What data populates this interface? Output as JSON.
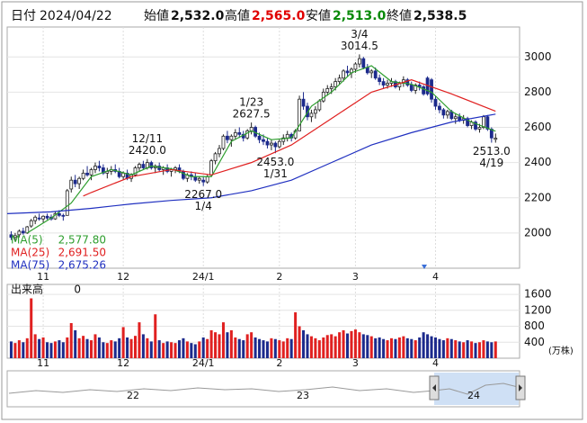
{
  "header": {
    "date_label": "日付",
    "date": "2024/04/22",
    "fields": [
      {
        "label": "始値",
        "value": 2532,
        "text": "2,532.0"
      },
      {
        "label": "高値",
        "value": 2565,
        "text": "2,565.0"
      },
      {
        "label": "安値",
        "value": 2513,
        "text": "2,513.0"
      },
      {
        "label": "終値",
        "value": 2538.5,
        "text": "2,538.5"
      }
    ]
  },
  "chart_data": {
    "type": "candlestick",
    "up_color": "#ffffff",
    "up_stroke": "#222222",
    "down_color": "#1c2a8c",
    "xlim": [
      -1,
      127
    ],
    "ylim": [
      1800,
      3170
    ],
    "yticks": [
      2000,
      2200,
      2400,
      2600,
      2800,
      3000
    ],
    "grid": true,
    "xticks": [
      {
        "value": 8,
        "label": "11"
      },
      {
        "value": 28,
        "label": "12"
      },
      {
        "value": 48,
        "label": "24/1"
      },
      {
        "value": 67,
        "label": "2"
      },
      {
        "value": 86,
        "label": "3"
      },
      {
        "value": 106,
        "label": "4"
      }
    ],
    "candles": [
      [
        1990,
        2010,
        1960,
        1975
      ],
      [
        1975,
        2000,
        1950,
        1985
      ],
      [
        1990,
        2020,
        1975,
        2010
      ],
      [
        2010,
        2030,
        1990,
        2000
      ],
      [
        2000,
        2040,
        1995,
        2035
      ],
      [
        2040,
        2080,
        2030,
        2070
      ],
      [
        2070,
        2100,
        2050,
        2090
      ],
      [
        2085,
        2110,
        2070,
        2080
      ],
      [
        2080,
        2100,
        2060,
        2095
      ],
      [
        2095,
        2110,
        2075,
        2085
      ],
      [
        2090,
        2105,
        2070,
        2080
      ],
      [
        2080,
        2120,
        2075,
        2110
      ],
      [
        2110,
        2130,
        2090,
        2100
      ],
      [
        2100,
        2110,
        2070,
        2095
      ],
      [
        2100,
        2250,
        2100,
        2240
      ],
      [
        2250,
        2320,
        2230,
        2300
      ],
      [
        2300,
        2330,
        2260,
        2280
      ],
      [
        2280,
        2320,
        2250,
        2310
      ],
      [
        2310,
        2360,
        2300,
        2340
      ],
      [
        2340,
        2380,
        2320,
        2330
      ],
      [
        2330,
        2370,
        2300,
        2360
      ],
      [
        2360,
        2400,
        2340,
        2380
      ],
      [
        2380,
        2410,
        2350,
        2370
      ],
      [
        2370,
        2390,
        2330,
        2340
      ],
      [
        2340,
        2370,
        2310,
        2350
      ],
      [
        2350,
        2380,
        2330,
        2360
      ],
      [
        2360,
        2390,
        2340,
        2350
      ],
      [
        2350,
        2370,
        2310,
        2320
      ],
      [
        2320,
        2350,
        2300,
        2340
      ],
      [
        2340,
        2360,
        2300,
        2310
      ],
      [
        2310,
        2340,
        2290,
        2330
      ],
      [
        2330,
        2380,
        2320,
        2370
      ],
      [
        2370,
        2400,
        2350,
        2390
      ],
      [
        2390,
        2410,
        2360,
        2370
      ],
      [
        2370,
        2420,
        2360,
        2400
      ],
      [
        2400,
        2410,
        2360,
        2370
      ],
      [
        2370,
        2390,
        2340,
        2380
      ],
      [
        2380,
        2400,
        2350,
        2360
      ],
      [
        2360,
        2380,
        2330,
        2370
      ],
      [
        2370,
        2390,
        2340,
        2350
      ],
      [
        2350,
        2370,
        2320,
        2360
      ],
      [
        2360,
        2380,
        2340,
        2370
      ],
      [
        2370,
        2390,
        2340,
        2350
      ],
      [
        2350,
        2360,
        2300,
        2310
      ],
      [
        2310,
        2340,
        2290,
        2330
      ],
      [
        2330,
        2350,
        2300,
        2320
      ],
      [
        2320,
        2340,
        2290,
        2300
      ],
      [
        2300,
        2320,
        2280,
        2310
      ],
      [
        2300,
        2320,
        2267,
        2290
      ],
      [
        2290,
        2330,
        2280,
        2320
      ],
      [
        2330,
        2420,
        2320,
        2410
      ],
      [
        2410,
        2460,
        2390,
        2450
      ],
      [
        2450,
        2500,
        2430,
        2480
      ],
      [
        2480,
        2560,
        2470,
        2550
      ],
      [
        2550,
        2580,
        2510,
        2530
      ],
      [
        2530,
        2560,
        2490,
        2550
      ],
      [
        2550,
        2590,
        2530,
        2570
      ],
      [
        2570,
        2600,
        2540,
        2560
      ],
      [
        2560,
        2580,
        2520,
        2540
      ],
      [
        2540,
        2590,
        2530,
        2580
      ],
      [
        2580,
        2627.5,
        2560,
        2600
      ],
      [
        2600,
        2610,
        2540,
        2550
      ],
      [
        2550,
        2570,
        2510,
        2530
      ],
      [
        2530,
        2560,
        2500,
        2520
      ],
      [
        2520,
        2540,
        2480,
        2500
      ],
      [
        2500,
        2530,
        2470,
        2510
      ],
      [
        2510,
        2520,
        2453,
        2490
      ],
      [
        2490,
        2530,
        2480,
        2520
      ],
      [
        2520,
        2560,
        2500,
        2540
      ],
      [
        2540,
        2580,
        2520,
        2560
      ],
      [
        2560,
        2570,
        2520,
        2540
      ],
      [
        2540,
        2590,
        2530,
        2580
      ],
      [
        2580,
        2780,
        2580,
        2760
      ],
      [
        2760,
        2800,
        2700,
        2720
      ],
      [
        2720,
        2740,
        2640,
        2660
      ],
      [
        2660,
        2700,
        2630,
        2680
      ],
      [
        2680,
        2720,
        2650,
        2700
      ],
      [
        2700,
        2760,
        2690,
        2750
      ],
      [
        2750,
        2820,
        2740,
        2800
      ],
      [
        2800,
        2840,
        2780,
        2820
      ],
      [
        2820,
        2850,
        2790,
        2830
      ],
      [
        2830,
        2880,
        2810,
        2860
      ],
      [
        2860,
        2900,
        2840,
        2880
      ],
      [
        2880,
        2930,
        2860,
        2920
      ],
      [
        2920,
        2950,
        2890,
        2910
      ],
      [
        2910,
        2940,
        2880,
        2930
      ],
      [
        2930,
        2970,
        2910,
        2960
      ],
      [
        2960,
        3014.5,
        2940,
        2990
      ],
      [
        2990,
        3000,
        2930,
        2940
      ],
      [
        2940,
        2960,
        2900,
        2910
      ],
      [
        2910,
        2930,
        2880,
        2920
      ],
      [
        2920,
        2940,
        2870,
        2880
      ],
      [
        2880,
        2900,
        2840,
        2860
      ],
      [
        2860,
        2880,
        2820,
        2840
      ],
      [
        2840,
        2870,
        2820,
        2850
      ],
      [
        2850,
        2880,
        2830,
        2860
      ],
      [
        2860,
        2870,
        2820,
        2830
      ],
      [
        2830,
        2860,
        2810,
        2850
      ],
      [
        2850,
        2890,
        2830,
        2870
      ],
      [
        2870,
        2880,
        2830,
        2840
      ],
      [
        2840,
        2860,
        2800,
        2810
      ],
      [
        2810,
        2850,
        2790,
        2840
      ],
      [
        2840,
        2860,
        2810,
        2830
      ],
      [
        2830,
        2840,
        2780,
        2790
      ],
      [
        2880,
        2890,
        2780,
        2790
      ],
      [
        2870,
        2880,
        2740,
        2760
      ],
      [
        2760,
        2780,
        2700,
        2720
      ],
      [
        2720,
        2740,
        2680,
        2700
      ],
      [
        2700,
        2710,
        2650,
        2670
      ],
      [
        2670,
        2700,
        2650,
        2690
      ],
      [
        2690,
        2700,
        2640,
        2650
      ],
      [
        2650,
        2680,
        2620,
        2660
      ],
      [
        2660,
        2680,
        2630,
        2640
      ],
      [
        2640,
        2670,
        2620,
        2650
      ],
      [
        2650,
        2660,
        2600,
        2610
      ],
      [
        2610,
        2640,
        2590,
        2630
      ],
      [
        2630,
        2640,
        2580,
        2590
      ],
      [
        2590,
        2620,
        2570,
        2600
      ],
      [
        2600,
        2670,
        2590,
        2660
      ],
      [
        2660,
        2670,
        2580,
        2590
      ],
      [
        2590,
        2600,
        2513,
        2540
      ],
      [
        2532,
        2565,
        2513,
        2538.5
      ]
    ],
    "series": [
      {
        "name": "MA(5)",
        "color": "#2e9e2e",
        "last": {
          "value": 2577.8,
          "label": "2,577.80"
        },
        "x": [
          4,
          10,
          15,
          20,
          25,
          30,
          35,
          40,
          45,
          50,
          55,
          60,
          65,
          70,
          75,
          80,
          85,
          90,
          95,
          100,
          105,
          110,
          115,
          121
        ],
        "values": [
          2000,
          2085,
          2170,
          2320,
          2360,
          2330,
          2380,
          2365,
          2320,
          2320,
          2520,
          2580,
          2530,
          2540,
          2720,
          2800,
          2910,
          2950,
          2860,
          2845,
          2800,
          2690,
          2630,
          2577.8
        ]
      },
      {
        "name": "MA(25)",
        "color": "#e02020",
        "last": {
          "value": 2691.5,
          "label": "2,691.50"
        },
        "x": [
          18,
          20,
          30,
          40,
          50,
          60,
          70,
          80,
          90,
          100,
          110,
          121
        ],
        "values": [
          2210,
          2230,
          2320,
          2360,
          2330,
          2400,
          2500,
          2650,
          2800,
          2870,
          2790,
          2691.5
        ]
      },
      {
        "name": "MA(75)",
        "color": "#2030c0",
        "last": {
          "value": 2675.26,
          "label": "2,675.26"
        },
        "x": [
          -1,
          10,
          20,
          30,
          40,
          50,
          60,
          70,
          80,
          90,
          100,
          110,
          121
        ],
        "values": [
          2110,
          2120,
          2140,
          2165,
          2185,
          2200,
          2240,
          2300,
          2400,
          2500,
          2570,
          2630,
          2675.26
        ]
      }
    ],
    "annotations": [
      {
        "date": "12/11",
        "x": 34,
        "value": 2420,
        "label": "2420.0",
        "kind": "high"
      },
      {
        "date": "1/4",
        "x": 48,
        "value": 2267,
        "label": "2267.0",
        "kind": "low"
      },
      {
        "date": "1/23",
        "x": 60,
        "value": 2627.5,
        "label": "2627.5",
        "kind": "high"
      },
      {
        "date": "1/31",
        "x": 66,
        "value": 2453,
        "label": "2453.0",
        "kind": "low"
      },
      {
        "date": "3/4",
        "x": 87,
        "value": 3014.5,
        "label": "3014.5",
        "kind": "high"
      },
      {
        "date": "4/19",
        "x": 120,
        "value": 2513,
        "label": "2513.0",
        "kind": "low"
      }
    ],
    "volume": {
      "label": "出来高",
      "readout": 0,
      "unit": "(万株)",
      "ylim": [
        0,
        1850
      ],
      "yticks": [
        400,
        800,
        1200,
        1600
      ],
      "values": [
        420,
        380,
        450,
        400,
        500,
        1500,
        600,
        480,
        520,
        400,
        380,
        420,
        450,
        400,
        520,
        880,
        700,
        500,
        560,
        480,
        450,
        600,
        520,
        400,
        380,
        450,
        420,
        500,
        780,
        520,
        480,
        560,
        900,
        600,
        500,
        420,
        1100,
        450,
        380,
        420,
        400,
        380,
        450,
        500,
        420,
        380,
        350,
        420,
        520,
        480,
        700,
        650,
        600,
        900,
        650,
        700,
        520,
        480,
        450,
        600,
        650,
        520,
        480,
        450,
        420,
        500,
        480,
        450,
        420,
        500,
        480,
        1150,
        800,
        700,
        600,
        550,
        500,
        450,
        520,
        580,
        600,
        550,
        650,
        700,
        620,
        680,
        720,
        650,
        600,
        580,
        550,
        500,
        520,
        480,
        450,
        500,
        480,
        520,
        550,
        500,
        480,
        450,
        520,
        650,
        600,
        550,
        520,
        480,
        450,
        500,
        480,
        450,
        420,
        400,
        450,
        420,
        380,
        400,
        450,
        420,
        400,
        420
      ]
    },
    "navigator": {
      "labels": [
        "22",
        "23",
        "24"
      ]
    }
  }
}
